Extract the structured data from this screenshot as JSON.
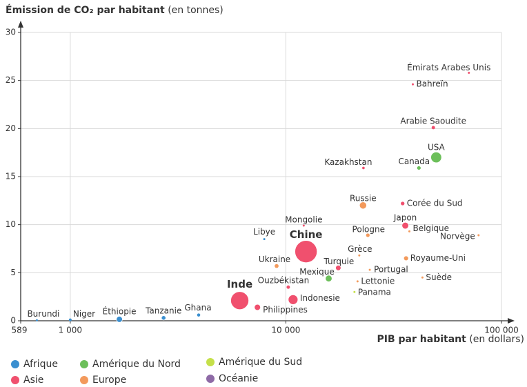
{
  "chart_data": {
    "type": "scatter",
    "ylabel": "Émission de CO₂ par habitant",
    "ylabel_unit": "(en tonnes)",
    "xlabel": "PIB par habitant",
    "xlabel_unit": "(en dollars)",
    "xscale": "log",
    "xlim": [
      589,
      100000
    ],
    "xticks": [
      589,
      {
        "value": 1000,
        "label": "1 000"
      },
      {
        "value": 10000,
        "label": "10 000"
      },
      {
        "value": 100000,
        "label": "100 000"
      }
    ],
    "ylim": [
      0,
      30
    ],
    "yticks": [
      0,
      5,
      10,
      15,
      20,
      25,
      30
    ],
    "grid": true,
    "legend": "bottom",
    "series": [
      {
        "name": "Afrique",
        "color": "#3a8fd0",
        "labels": [
          "Burundi",
          "Niger",
          "Éthiopie",
          "Tanzanie",
          "Ghana",
          "Libye"
        ],
        "x": [
          700,
          1000,
          1690,
          2710,
          3940,
          7940
        ],
        "values": [
          0.05,
          0.1,
          0.15,
          0.3,
          0.6,
          8.5
        ],
        "sizes": [
          11,
          22,
          105,
          56,
          29,
          7
        ]
      },
      {
        "name": "Amérique du Nord",
        "color": "#6cbf5a",
        "labels": [
          "Mexique",
          "Canada",
          "USA"
        ],
        "x": [
          15800,
          41400,
          49800
        ],
        "values": [
          4.4,
          15.9,
          17
        ],
        "sizes": [
          125,
          37,
          330
        ]
      },
      {
        "name": "Amérique du Sud",
        "color": "#c5e04a",
        "labels": [
          "Panama"
        ],
        "x": [
          20800
        ],
        "values": [
          3
        ],
        "sizes": [
          4
        ]
      },
      {
        "name": "Asie",
        "color": "#f0506e",
        "labels": [
          "Inde",
          "Philippines",
          "Ouzbékistan",
          "Chine",
          "Mongolie",
          "Indonesie",
          "Turquie",
          "Kazakhstan",
          "Corée du Sud",
          "Japon",
          "Arabie Saoudite",
          "Bahreïn",
          "Émirats Arabes Unis"
        ],
        "x": [
          6110,
          7380,
          10260,
          12400,
          12100,
          10800,
          17500,
          22900,
          34800,
          35800,
          48300,
          38800,
          70600
        ],
        "values": [
          2.1,
          1.4,
          3.5,
          7.2,
          9.9,
          2.2,
          5.5,
          15.9,
          12.2,
          9.9,
          20.1,
          24.6,
          25.8
        ],
        "sizes": [
          920,
          107,
          33,
          1400,
          3,
          265,
          82,
          18,
          51,
          127,
          33,
          2,
          9
        ]
      },
      {
        "name": "Europe",
        "color": "#f39a5c",
        "labels": [
          "Ukraine",
          "Grèce",
          "Lettonie",
          "Portugal",
          "Pologne",
          "Russie",
          "Belgique",
          "Royaume-Uni",
          "Suède",
          "Norvège"
        ],
        "x": [
          9060,
          21900,
          21500,
          24500,
          24000,
          22800,
          37400,
          36100,
          43000,
          78300
        ],
        "values": [
          5.7,
          6.8,
          4.1,
          5.3,
          8.9,
          12,
          9.3,
          6.5,
          4.5,
          8.9
        ],
        "sizes": [
          44,
          11,
          2,
          10,
          38,
          145,
          11,
          66,
          10,
          5
        ]
      },
      {
        "name": "Océanie",
        "color": "#8e6aa6",
        "labels": [],
        "x": [],
        "values": [],
        "sizes": []
      }
    ]
  }
}
